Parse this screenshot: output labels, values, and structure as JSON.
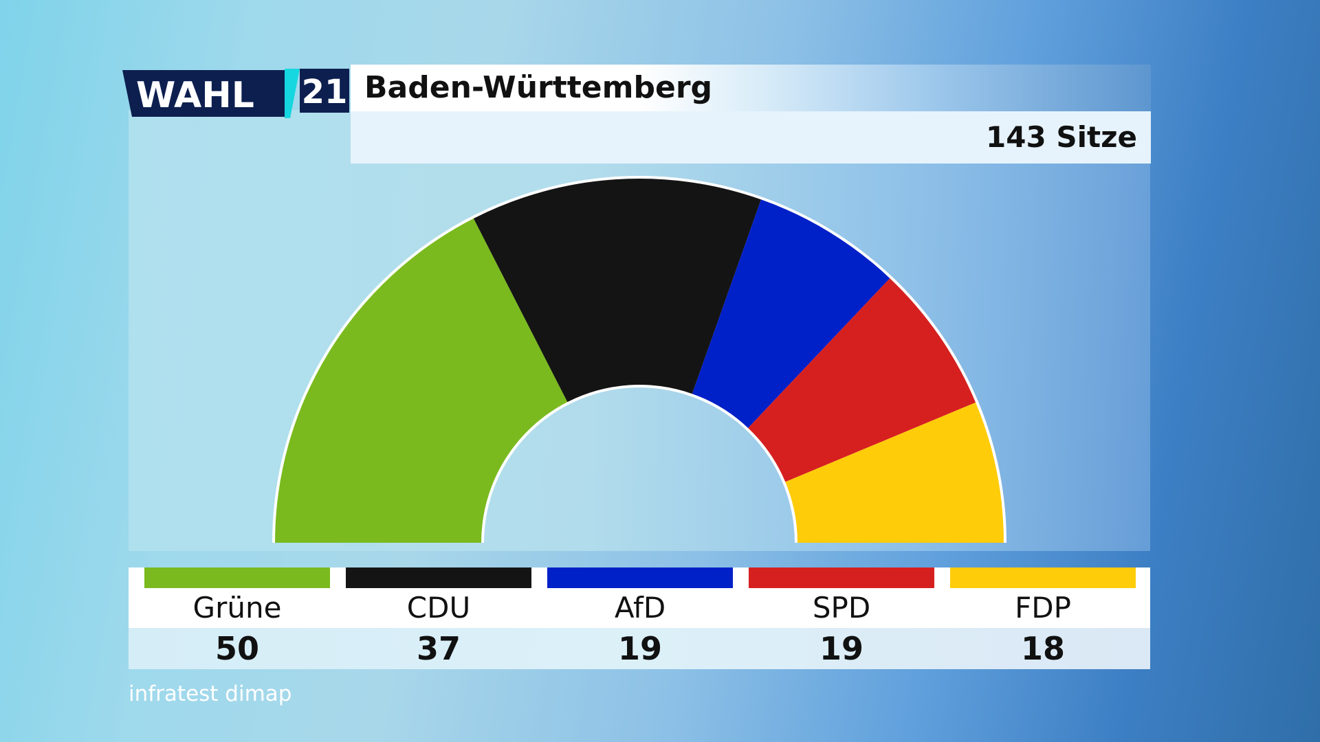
{
  "logo": {
    "word": "WAHL",
    "number": "21"
  },
  "header": {
    "title": "Baden-Württemberg",
    "seats_label": "143 Sitze"
  },
  "source": "infratest dimap",
  "colors": {
    "Grüne": "#7aba1e",
    "CDU": "#141414",
    "AfD": "#0020c8",
    "SPD": "#d62020",
    "FDP": "#ffcc0a"
  },
  "chart_data": {
    "type": "pie",
    "subtype": "parliament-hemicycle",
    "title": "Baden-Württemberg",
    "total_seats": 143,
    "categories": [
      "Grüne",
      "CDU",
      "AfD",
      "SPD",
      "FDP"
    ],
    "values": [
      50,
      37,
      19,
      19,
      18
    ],
    "legend": [
      {
        "name": "Grüne",
        "seats": "50"
      },
      {
        "name": "CDU",
        "seats": "37"
      },
      {
        "name": "AfD",
        "seats": "19"
      },
      {
        "name": "SPD",
        "seats": "19"
      },
      {
        "name": "FDP",
        "seats": "18"
      }
    ]
  }
}
